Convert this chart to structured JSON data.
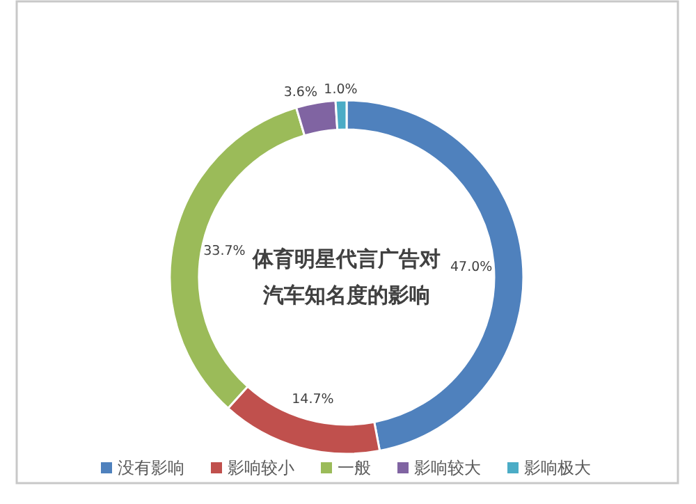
{
  "chart_data": {
    "type": "donut",
    "title": "体育明星代言广告对汽车知名度的影响",
    "categories": [
      "没有影响",
      "影响较小",
      "一般",
      "影响较大",
      "影响极大"
    ],
    "values": [
      47.0,
      14.7,
      33.7,
      3.6,
      1.0
    ],
    "value_labels": [
      "47.0%",
      "14.7%",
      "33.7%",
      "3.6%",
      "1.0%"
    ],
    "colors": [
      "#4f81bd",
      "#c0504d",
      "#9bbb59",
      "#8064a2",
      "#4bacc6"
    ],
    "legend": "bottom"
  }
}
